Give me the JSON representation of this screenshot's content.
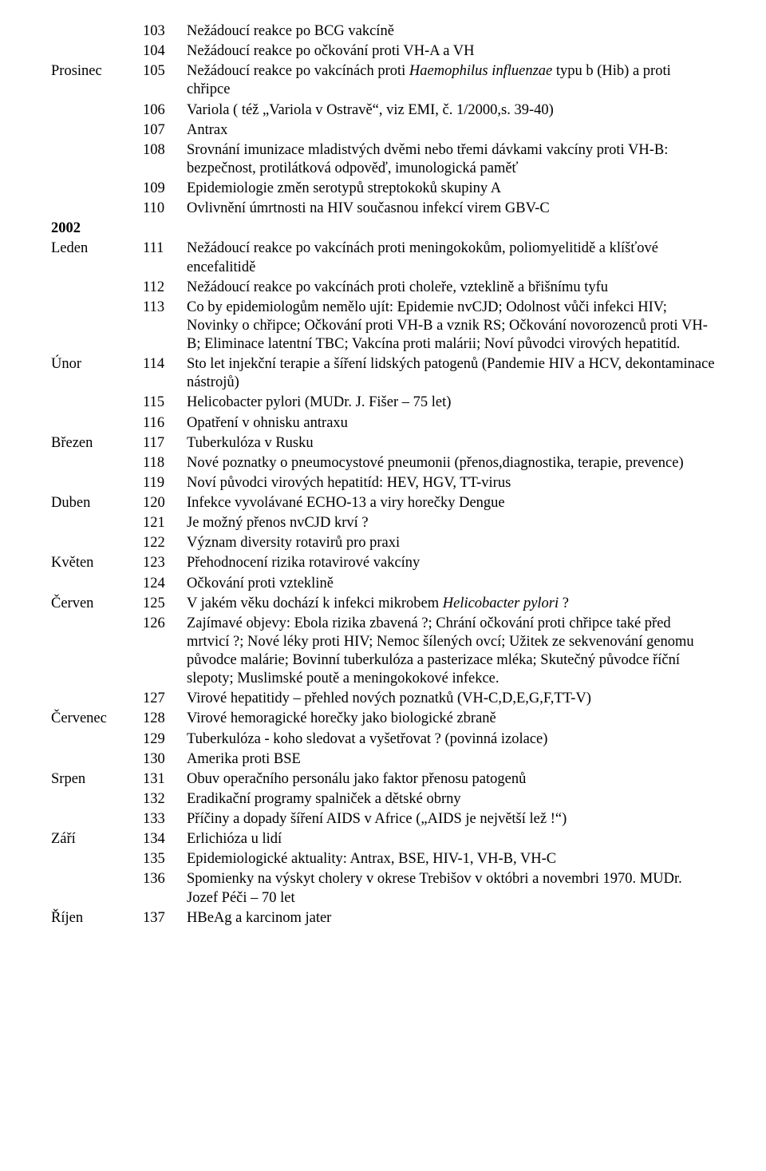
{
  "year2002Label": "2002",
  "rows": [
    {
      "month": "",
      "num": "103",
      "text": "Nežádoucí reakce po BCG vakcíně"
    },
    {
      "month": "",
      "num": "104",
      "text": "Nežádoucí reakce po očkování proti VH-A a VH"
    },
    {
      "month": "Prosinec",
      "num": "105",
      "textParts": [
        "Nežádoucí reakce po vakcínách proti ",
        {
          "italic": true,
          "t": "Haemophilus influenzae"
        },
        " typu b (Hib) a proti chřipce"
      ]
    },
    {
      "month": "",
      "num": "106",
      "text": "Variola ( též „Variola v Ostravě“, viz EMI, č. 1/2000,s. 39-40)"
    },
    {
      "month": "",
      "num": "107",
      "text": "Antrax"
    },
    {
      "month": "",
      "num": "108",
      "text": "Srovnání imunizace mladistvých dvěmi nebo třemi dávkami vakcíny proti VH-B: bezpečnost, protilátková odpověď, imunologická paměť"
    },
    {
      "month": "",
      "num": "109",
      "text": "Epidemiologie změn serotypů streptokoků skupiny A"
    },
    {
      "month": "",
      "num": "110",
      "text": "Ovlivnění úmrtnosti na HIV současnou infekcí virem GBV-C"
    },
    {
      "yearBreak": true
    },
    {
      "month": "Leden",
      "num": "111",
      "text": "Nežádoucí reakce po vakcínách proti meningokokům, poliomyelitidě a klíšťové encefalitidě"
    },
    {
      "month": "",
      "num": "112",
      "text": "Nežádoucí reakce po vakcínách proti choleře, vzteklině a břišnímu tyfu"
    },
    {
      "month": "",
      "num": "113",
      "text": "Co by epidemiologům nemělo ujít: Epidemie nvCJD; Odolnost vůči infekci HIV; Novinky o chřipce; Očkování proti VH-B a vznik RS; Očkování novorozenců proti VH-B; Eliminace latentní TBC; Vakcína proti malárii; Noví původci virových hepatitíd."
    },
    {
      "month": "Únor",
      "num": "114",
      "text": "Sto let injekční terapie a šíření lidských patogenů (Pandemie HIV a HCV, dekontaminace nástrojů)"
    },
    {
      "month": "",
      "num": "115",
      "text": "Helicobacter pylori (MUDr. J. Fišer – 75 let)"
    },
    {
      "month": "",
      "num": "116",
      "text": "Opatření v ohnisku antraxu"
    },
    {
      "month": "Březen",
      "num": "117",
      "text": "Tuberkulóza v Rusku"
    },
    {
      "month": "",
      "num": "118",
      "text": "Nové poznatky o pneumocystové pneumonii (přenos,diagnostika, terapie, prevence)"
    },
    {
      "month": "",
      "num": "119",
      "text": "Noví původci virových hepatitíd: HEV, HGV, TT-virus"
    },
    {
      "month": "Duben",
      "num": "120",
      "text": "Infekce vyvolávané ECHO-13 a viry horečky Dengue"
    },
    {
      "month": "",
      "num": "121",
      "text": "Je možný přenos nvCJD krví ?"
    },
    {
      "month": "",
      "num": "122",
      "text": "Význam diversity rotavirů pro praxi"
    },
    {
      "month": "Květen",
      "num": "123",
      "text": "Přehodnocení rizika rotavirové vakcíny"
    },
    {
      "month": "",
      "num": "124",
      "text": "Očkování proti vzteklině"
    },
    {
      "month": "Červen",
      "num": "125",
      "textParts": [
        "V jakém věku dochází k infekci mikrobem ",
        {
          "italic": true,
          "t": "Helicobacter pylori"
        },
        " ?"
      ]
    },
    {
      "month": "",
      "num": "126",
      "text": "Zajímavé objevy: Ebola rizika zbavená ?; Chrání očkování proti chřipce také před mrtvicí ?; Nové léky proti HIV; Nemoc šílených ovcí; Užitek ze sekvenování genomu původce malárie; Bovinní tuberkulóza a pasterizace mléka; Skutečný původce říční slepoty; Muslimské poutě a meningokokové infekce."
    },
    {
      "month": "",
      "num": "127",
      "text": "Virové hepatitidy – přehled nových poznatků (VH-C,D,E,G,F,TT-V)"
    },
    {
      "month": "Červenec",
      "num": "128",
      "text": "Virové hemoragické horečky jako biologické zbraně"
    },
    {
      "month": "",
      "num": "129",
      "text": "Tuberkulóza - koho sledovat a vyšetřovat ? (povinná izolace)"
    },
    {
      "month": "",
      "num": "130",
      "text": "Amerika proti BSE"
    },
    {
      "month": "Srpen",
      "num": "131",
      "text": "Obuv operačního personálu jako faktor přenosu patogenů"
    },
    {
      "month": "",
      "num": "132",
      "text": "Eradikační programy spalniček a dětské obrny"
    },
    {
      "month": "",
      "num": "133",
      "text": "Příčiny a dopady šíření AIDS v Africe („AIDS je největší lež !“)"
    },
    {
      "month": "Září",
      "num": "134",
      "text": "Erlichióza u lidí"
    },
    {
      "month": "",
      "num": "135",
      "text": "Epidemiologické aktuality: Antrax, BSE, HIV-1, VH-B, VH-C"
    },
    {
      "month": "",
      "num": "136",
      "text": "Spomienky na výskyt cholery v okrese Trebišov v októbri a novembri 1970. MUDr. Jozef Péči – 70 let"
    },
    {
      "month": "Říjen",
      "num": "137",
      "text": "HBeAg a karcinom jater"
    }
  ]
}
